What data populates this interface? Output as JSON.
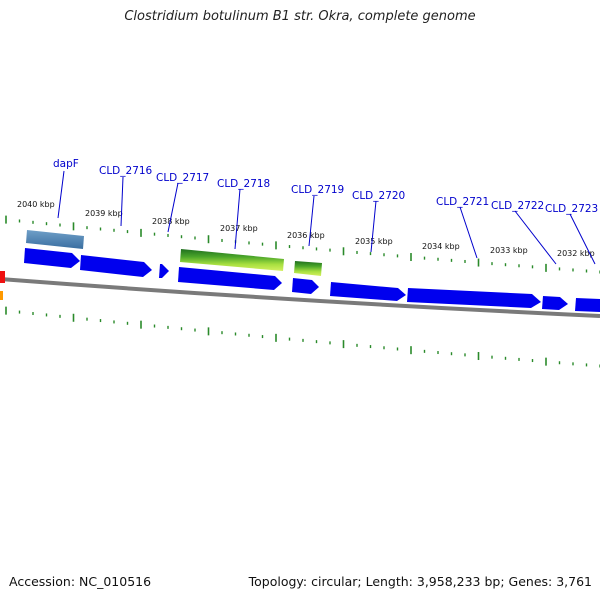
{
  "title": "Clostridium botulinum B1 str. Okra, complete genome",
  "footer": {
    "accession": "Accession: NC_010516",
    "summary": "Topology: circular; Length: 3,958,233 bp; Genes: 3,761"
  },
  "colors": {
    "gene": "#0000ee",
    "tick": "#2a8a2a",
    "backbone": "#777777",
    "label": "#0000cc"
  },
  "kbp_labels": [
    "2040 kbp",
    "2039 kbp",
    "2038 kbp",
    "2037 kbp",
    "2036 kbp",
    "2035 kbp",
    "2034 kbp",
    "2033 kbp",
    "2032 kbp"
  ],
  "gene_labels": [
    "dapF",
    "CLD_2716",
    "CLD_2717",
    "CLD_2718",
    "CLD_2719",
    "CLD_2720",
    "CLD_2721",
    "CLD_2722",
    "CLD_2723"
  ]
}
